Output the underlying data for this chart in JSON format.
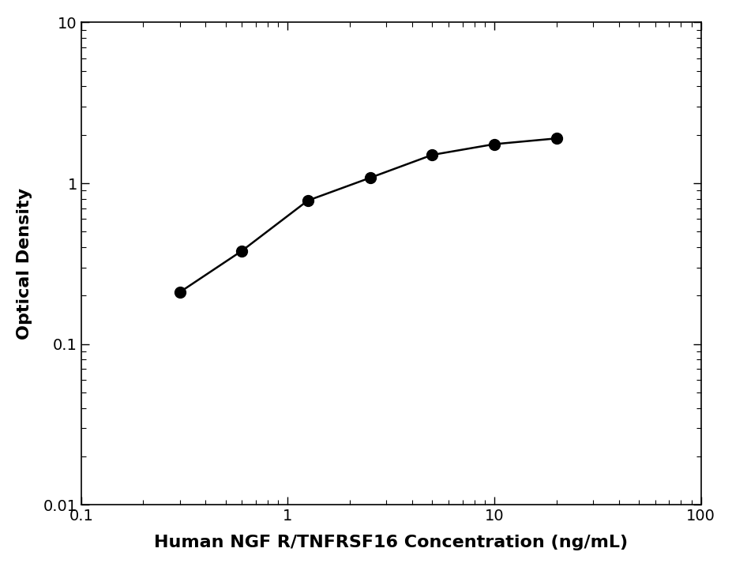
{
  "x_data": [
    0.3,
    0.6,
    1.25,
    2.5,
    5.0,
    10.0,
    20.0
  ],
  "y_data": [
    0.21,
    0.38,
    0.78,
    1.08,
    1.5,
    1.75,
    1.9
  ],
  "xlabel": "Human NGF R/TNFRSF16 Concentration (ng/mL)",
  "ylabel": "Optical Density",
  "xlim": [
    0.1,
    100
  ],
  "ylim": [
    0.01,
    10
  ],
  "curve_xmin": 0.3,
  "curve_xmax": 20.0,
  "x_ticks": [
    0.1,
    1,
    10,
    100
  ],
  "x_tick_labels": [
    "0.1",
    "1",
    "10",
    "100"
  ],
  "y_ticks": [
    0.01,
    0.1,
    1,
    10
  ],
  "y_tick_labels": [
    "0.01",
    "0.1",
    "1",
    "10"
  ],
  "line_color": "#000000",
  "marker_color": "#000000",
  "marker_size": 10,
  "line_width": 1.8,
  "xlabel_fontsize": 16,
  "ylabel_fontsize": 16,
  "tick_fontsize": 14,
  "xlabel_fontweight": "bold",
  "ylabel_fontweight": "bold",
  "background_color": "#ffffff",
  "n_curve_points": 300
}
